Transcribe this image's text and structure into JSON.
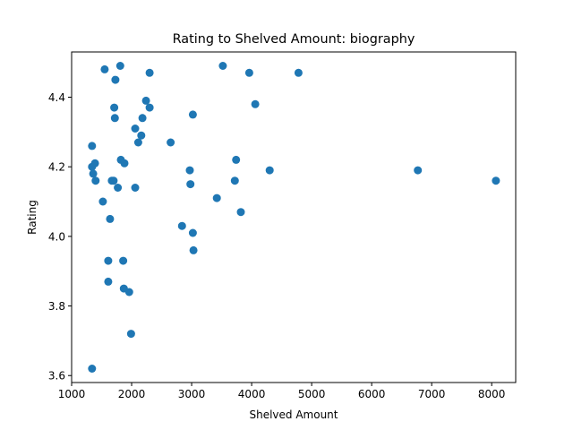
{
  "chart_data": {
    "type": "scatter",
    "title": "Rating to Shelved Amount: biography",
    "xlabel": "Shelved Amount",
    "ylabel": "Rating",
    "xlim": [
      1000,
      8400
    ],
    "ylim": [
      3.58,
      4.53
    ],
    "xticks": [
      1000,
      2000,
      3000,
      4000,
      5000,
      6000,
      7000,
      8000
    ],
    "yticks": [
      3.6,
      3.8,
      4.0,
      4.2,
      4.4
    ],
    "grid": false,
    "legend": "none",
    "marker_color": "#1f77b4",
    "points": [
      {
        "x": 1340,
        "y": 4.26
      },
      {
        "x": 1340,
        "y": 4.2
      },
      {
        "x": 1360,
        "y": 4.18
      },
      {
        "x": 1390,
        "y": 4.21
      },
      {
        "x": 1400,
        "y": 4.16
      },
      {
        "x": 1520,
        "y": 4.1
      },
      {
        "x": 1550,
        "y": 4.48
      },
      {
        "x": 1610,
        "y": 3.93
      },
      {
        "x": 1610,
        "y": 3.87
      },
      {
        "x": 1640,
        "y": 4.05
      },
      {
        "x": 1670,
        "y": 4.16
      },
      {
        "x": 1700,
        "y": 4.16
      },
      {
        "x": 1710,
        "y": 4.37
      },
      {
        "x": 1720,
        "y": 4.34
      },
      {
        "x": 1730,
        "y": 4.45
      },
      {
        "x": 1770,
        "y": 4.14
      },
      {
        "x": 1810,
        "y": 4.49
      },
      {
        "x": 1820,
        "y": 4.22
      },
      {
        "x": 1860,
        "y": 3.93
      },
      {
        "x": 1870,
        "y": 3.85
      },
      {
        "x": 1880,
        "y": 4.21
      },
      {
        "x": 1960,
        "y": 3.84
      },
      {
        "x": 1990,
        "y": 3.72
      },
      {
        "x": 2060,
        "y": 4.31
      },
      {
        "x": 2060,
        "y": 4.14
      },
      {
        "x": 2110,
        "y": 4.27
      },
      {
        "x": 2160,
        "y": 4.29
      },
      {
        "x": 2180,
        "y": 4.34
      },
      {
        "x": 2240,
        "y": 4.39
      },
      {
        "x": 2300,
        "y": 4.37
      },
      {
        "x": 2300,
        "y": 4.47
      },
      {
        "x": 2650,
        "y": 4.27
      },
      {
        "x": 2840,
        "y": 4.03
      },
      {
        "x": 2970,
        "y": 4.19
      },
      {
        "x": 2980,
        "y": 4.15
      },
      {
        "x": 3020,
        "y": 4.35
      },
      {
        "x": 3020,
        "y": 4.01
      },
      {
        "x": 3030,
        "y": 3.96
      },
      {
        "x": 3420,
        "y": 4.11
      },
      {
        "x": 3520,
        "y": 4.49
      },
      {
        "x": 3720,
        "y": 4.16
      },
      {
        "x": 3740,
        "y": 4.22
      },
      {
        "x": 3820,
        "y": 4.07
      },
      {
        "x": 3960,
        "y": 4.47
      },
      {
        "x": 4060,
        "y": 4.38
      },
      {
        "x": 4300,
        "y": 4.19
      },
      {
        "x": 4780,
        "y": 4.47
      },
      {
        "x": 6770,
        "y": 4.19
      },
      {
        "x": 8070,
        "y": 4.16
      },
      {
        "x": 1340,
        "y": 3.62
      }
    ]
  }
}
